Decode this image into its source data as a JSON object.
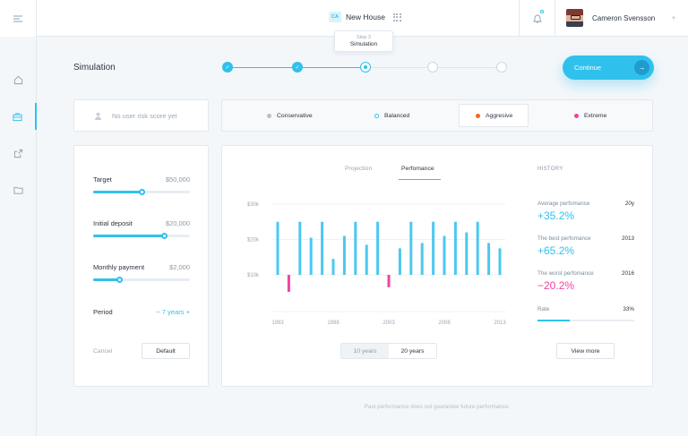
{
  "topbar": {
    "project_badge": "CA",
    "project_name": "New House",
    "user_name": "Cameron Svensson"
  },
  "sidebar": {
    "items": [
      {
        "icon": "home-icon"
      },
      {
        "icon": "briefcase-icon",
        "active": true
      },
      {
        "icon": "export-icon"
      },
      {
        "icon": "folder-icon"
      }
    ]
  },
  "page": {
    "title": "Simulation",
    "continue_label": "Continue",
    "continue_arrow": "→"
  },
  "stepper": {
    "steps_total": 5,
    "completed": 2,
    "current_index": 2,
    "tooltip_step": "Step 3",
    "tooltip_label": "Simulation",
    "check_glyph": "✓"
  },
  "risk": {
    "placeholder": "No user risk score yet"
  },
  "strategies": [
    {
      "label": "Conservative",
      "color": "#b5c0ca",
      "selected": false
    },
    {
      "label": "Balanced",
      "color": "#2fc1ec",
      "selected": false
    },
    {
      "label": "Aggresive",
      "color": "#f0681e",
      "selected": true
    },
    {
      "label": "Extreme",
      "color": "#f0439d",
      "selected": false
    }
  ],
  "form": {
    "target": {
      "label": "Target",
      "value": "$50,000",
      "level": 0.5
    },
    "deposit": {
      "label": "Initial deposit",
      "value": "$20,000",
      "level": 0.73
    },
    "monthly": {
      "label": "Monthly payment",
      "value": "$2,000",
      "level": 0.27
    },
    "period": {
      "label": "Period",
      "value": "− 7 years +"
    },
    "cancel_label": "Cancel",
    "default_label": "Default"
  },
  "tabs": {
    "projection": "Projection",
    "performance": "Perfomance"
  },
  "chart_data": {
    "type": "bar",
    "y_ticks": [
      "$30k",
      "$20k",
      "$10k"
    ],
    "y_tick_values": [
      30,
      20,
      10
    ],
    "x_ticks": [
      "1993",
      "1998",
      "2003",
      "2008",
      "2013"
    ],
    "x_tick_values": [
      1993,
      1998,
      2003,
      2008,
      2013
    ],
    "x": [
      1993,
      1994,
      1995,
      1996,
      1997,
      1998,
      1999,
      2000,
      2001,
      2002,
      2003,
      2004,
      2005,
      2006,
      2007,
      2008,
      2009,
      2010,
      2011,
      2012,
      2013
    ],
    "values": [
      25,
      5,
      25,
      20.5,
      25,
      14.5,
      21,
      25,
      18.5,
      25,
      4,
      17.5,
      25,
      19,
      25,
      21,
      25,
      22,
      25,
      19,
      17.5
    ],
    "negatives": [
      {
        "x": 1994,
        "value": 4.8
      },
      {
        "x": 2003,
        "value": 3.5
      }
    ],
    "ylim": [
      0,
      30
    ],
    "baseline": 10,
    "bar_color": "#4bc8f0",
    "negative_color": "#f0439d"
  },
  "range": {
    "option_1": "10 years",
    "option_2": "20 years"
  },
  "history": {
    "title": "HISTORY",
    "average": {
      "label": "Average perfomance",
      "tag": "20y",
      "value": "+35.2%"
    },
    "best": {
      "label": "The best perfomance",
      "tag": "2013",
      "value": "+65.2%"
    },
    "worst": {
      "label": "The worst perfomance",
      "tag": "2016",
      "value": "−20.2%"
    },
    "rate": {
      "label": "Rate",
      "tag": "33%",
      "level": 0.33
    },
    "view_more_label": "View more"
  },
  "footnote": "Past performance does not guarantee future performance."
}
